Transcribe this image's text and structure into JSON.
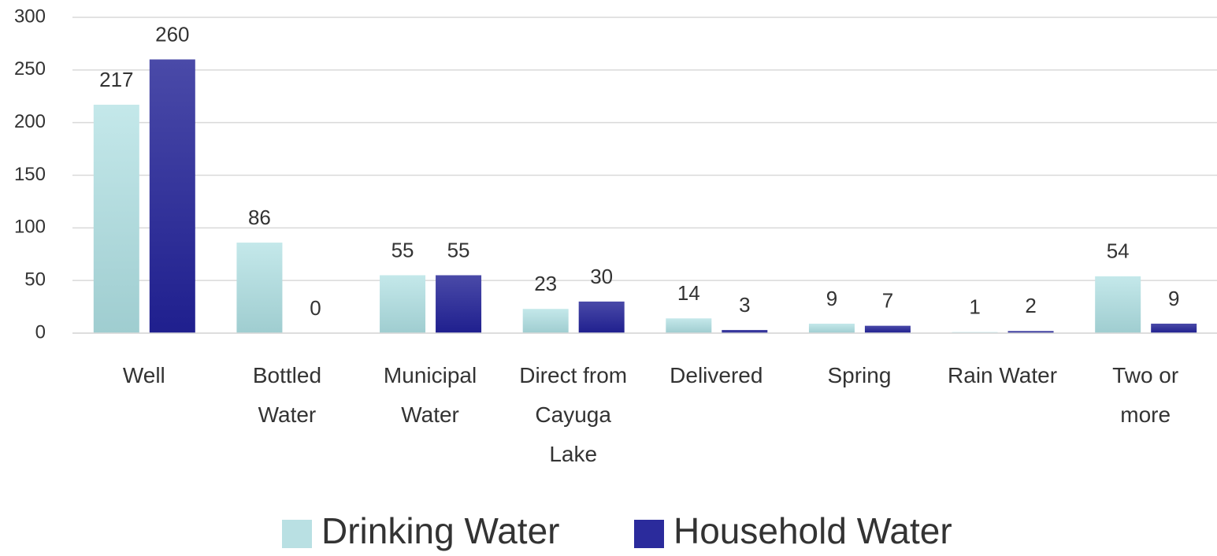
{
  "chart_data": {
    "type": "bar",
    "categories": [
      "Well",
      "Bottled Water",
      "Municipal Water",
      "Direct from Cayuga Lake",
      "Delivered",
      "Spring",
      "Rain Water",
      "Two or more"
    ],
    "series": [
      {
        "name": "Drinking Water",
        "color": "#b9e0e3",
        "values": [
          217,
          86,
          55,
          23,
          14,
          9,
          1,
          54
        ]
      },
      {
        "name": "Household Water",
        "color": "#2b2b9c",
        "values": [
          260,
          0,
          55,
          30,
          3,
          7,
          2,
          9
        ]
      }
    ],
    "ylim": [
      0,
      300
    ],
    "yticks": [
      0,
      50,
      100,
      150,
      200,
      250,
      300
    ],
    "grid": true,
    "legend": "bottom"
  }
}
